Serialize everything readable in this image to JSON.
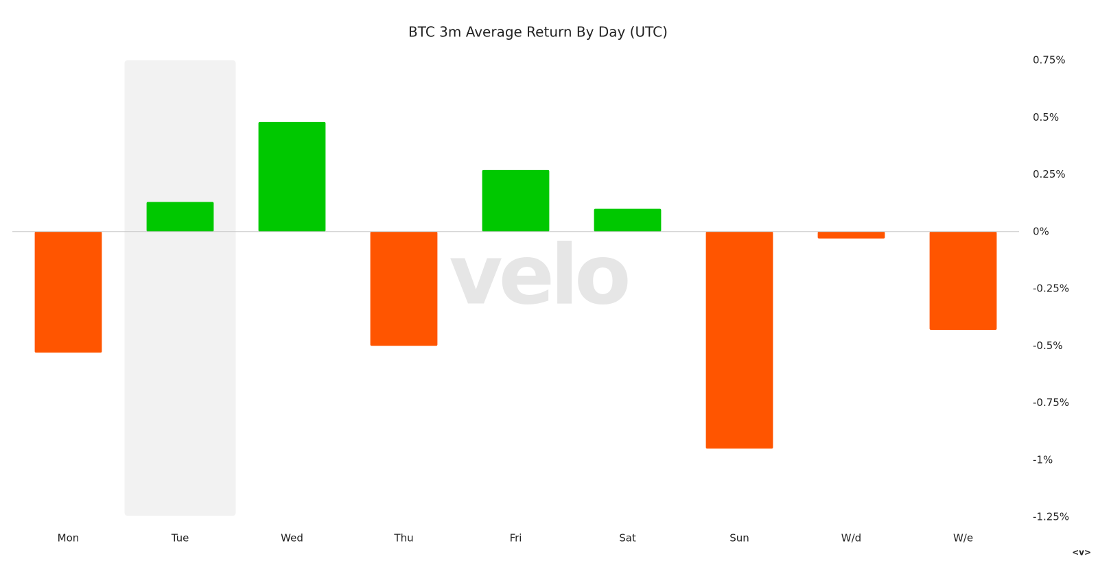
{
  "chart_data": {
    "type": "bar",
    "title": "BTC 3m Average Return By Day (UTC)",
    "categories": [
      "Mon",
      "Tue",
      "Wed",
      "Thu",
      "Fri",
      "Sat",
      "Sun",
      "W/d",
      "W/e"
    ],
    "values": [
      -0.53,
      0.13,
      0.48,
      -0.5,
      0.27,
      0.1,
      -0.95,
      -0.03,
      -0.43
    ],
    "positive_color": "#00c800",
    "negative_color": "#ff5500",
    "highlighted_index": 1,
    "ylim": [
      -1.25,
      0.75
    ],
    "yticks": [
      {
        "value": 0.75,
        "label": "0.75%"
      },
      {
        "value": 0.5,
        "label": "0.5%"
      },
      {
        "value": 0.25,
        "label": "0.25%"
      },
      {
        "value": 0,
        "label": "0%"
      },
      {
        "value": -0.25,
        "label": "-0.25%"
      },
      {
        "value": -0.5,
        "label": "-0.5%"
      },
      {
        "value": -0.75,
        "label": "-0.75%"
      },
      {
        "value": -1,
        "label": "-1%"
      },
      {
        "value": -1.25,
        "label": "-1.25%"
      }
    ],
    "y_axis_side": "right",
    "grid": false,
    "watermark": "velo",
    "footer_mark": "<v>"
  }
}
